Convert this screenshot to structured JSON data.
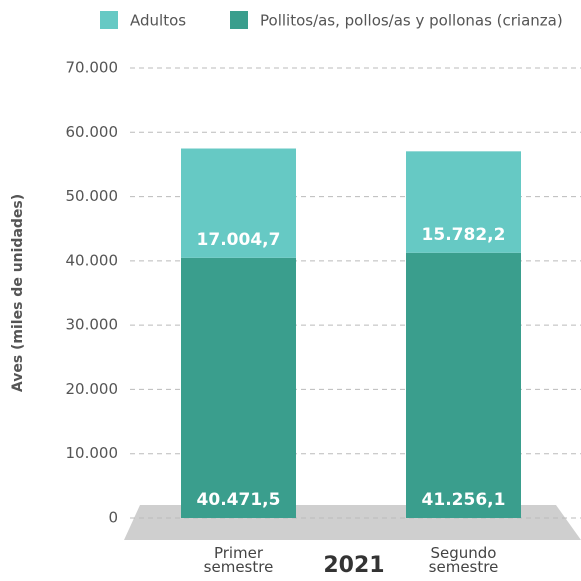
{
  "chart_data": {
    "type": "stacked_bar",
    "y_label": "Aves (miles de unidades)",
    "group_label": "2021",
    "categories": [
      "Primer semestre",
      "Segundo semestre"
    ],
    "series": [
      {
        "name": "Adultos",
        "color": "#66c9c4",
        "values": [
          17004.7,
          15782.2
        ],
        "value_labels": [
          "17.004,7",
          "15.782,2"
        ]
      },
      {
        "name": "Pollitos/as, pollos/as y pollonas (crianza)",
        "color": "#3a9e8d",
        "values": [
          40471.5,
          41256.1
        ],
        "value_labels": [
          "40.471,5",
          "41.256,1"
        ]
      }
    ],
    "ylim": [
      0,
      70000
    ],
    "yticks": [
      0,
      {
        "value": 10000,
        "label": "10.000"
      },
      {
        "value": 20000,
        "label": "20.000"
      },
      {
        "value": 30000,
        "label": "30.000"
      },
      {
        "value": 40000,
        "label": "40.000"
      },
      {
        "value": 50000,
        "label": "50.000"
      },
      {
        "value": 60000,
        "label": "60.000"
      },
      {
        "value": 70000,
        "label": "70.000"
      }
    ],
    "grid": true
  }
}
